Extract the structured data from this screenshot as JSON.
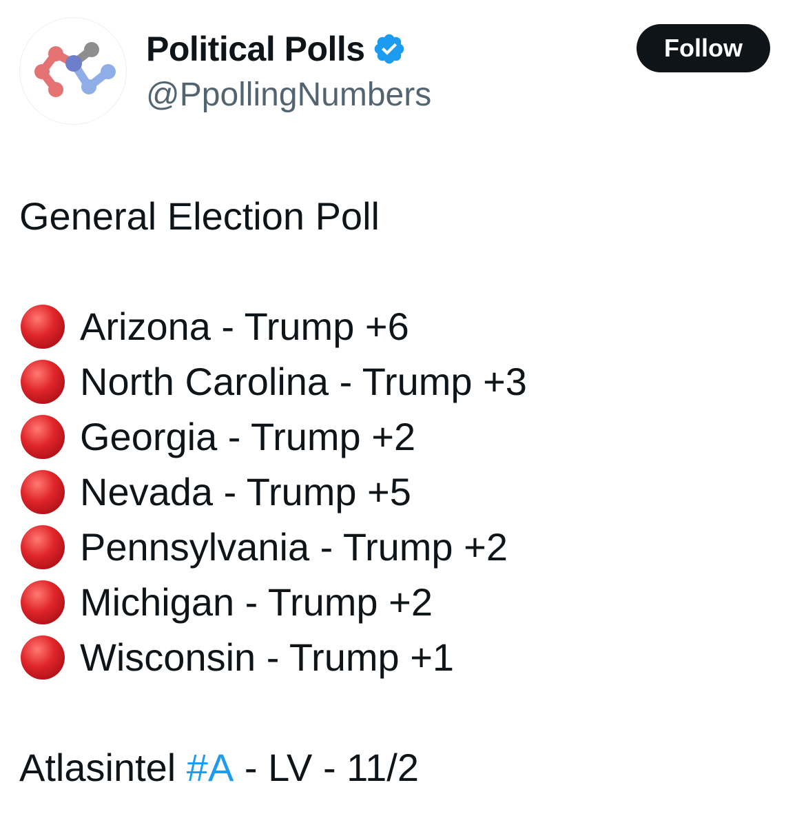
{
  "author": {
    "display_name": "Political Polls",
    "handle": "@PpollingNumbers",
    "verified": true,
    "avatar_icon": "connected-nodes-logo-icon",
    "verified_icon": "verified-badge-icon"
  },
  "actions": {
    "follow_label": "Follow"
  },
  "tweet": {
    "headline": "General Election Poll",
    "bullet_icon": "red-circle-icon",
    "results": [
      {
        "text": "Arizona - Trump +6"
      },
      {
        "text": "North Carolina - Trump +3"
      },
      {
        "text": "Georgia - Trump +2"
      },
      {
        "text": "Nevada - Trump +5"
      },
      {
        "text": "Pennsylvania - Trump +2"
      },
      {
        "text": "Michigan - Trump +2"
      },
      {
        "text": "Wisconsin - Trump +1"
      }
    ],
    "footer": {
      "prefix": "Atlasintel ",
      "hashtag": "#A",
      "suffix": " - LV - 11/2"
    }
  },
  "colors": {
    "text": "#0f1419",
    "secondary_text": "#536471",
    "link": "#1d9bf0",
    "verified": "#1d9bf0",
    "bullet": "#e0262a",
    "follow_bg": "#0f1419"
  }
}
